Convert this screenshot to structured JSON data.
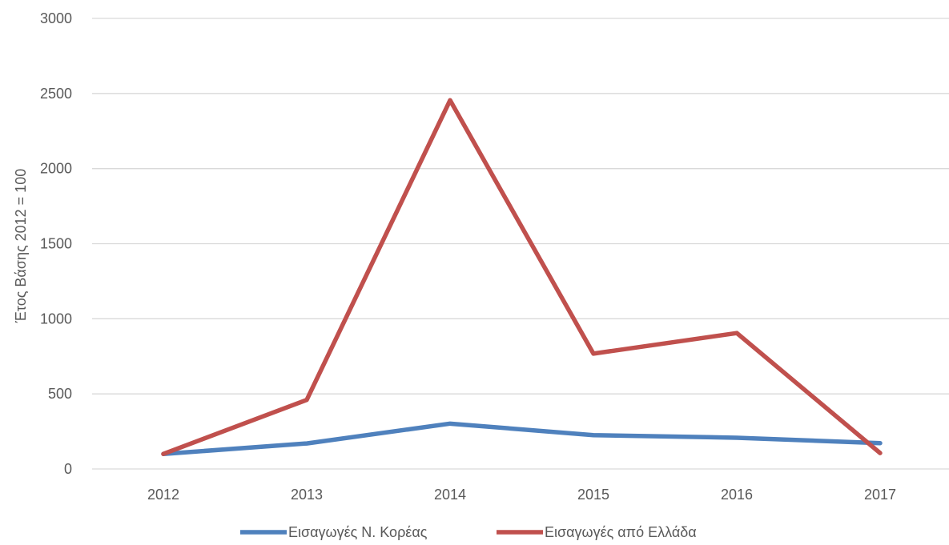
{
  "chart_data": {
    "type": "line",
    "title": "",
    "xlabel": "",
    "ylabel": "Έτος Βάσης 2012 = 100",
    "categories": [
      "2012",
      "2013",
      "2014",
      "2015",
      "2016",
      "2017"
    ],
    "yticks": [
      "0",
      "500",
      "1000",
      "1500",
      "2000",
      "2500",
      "3000"
    ],
    "ylim": [
      0,
      3000
    ],
    "grid": true,
    "legend": "bottom",
    "series": [
      {
        "name": "Εισαγωγές Ν. Κορέας",
        "color": "#4F81BD",
        "values": [
          100,
          170,
          302,
          225,
          208,
          172
        ]
      },
      {
        "name": "Εισαγωγές από Ελλάδα",
        "color": "#C0504D",
        "values": [
          100,
          460,
          2455,
          768,
          905,
          106
        ]
      }
    ]
  }
}
